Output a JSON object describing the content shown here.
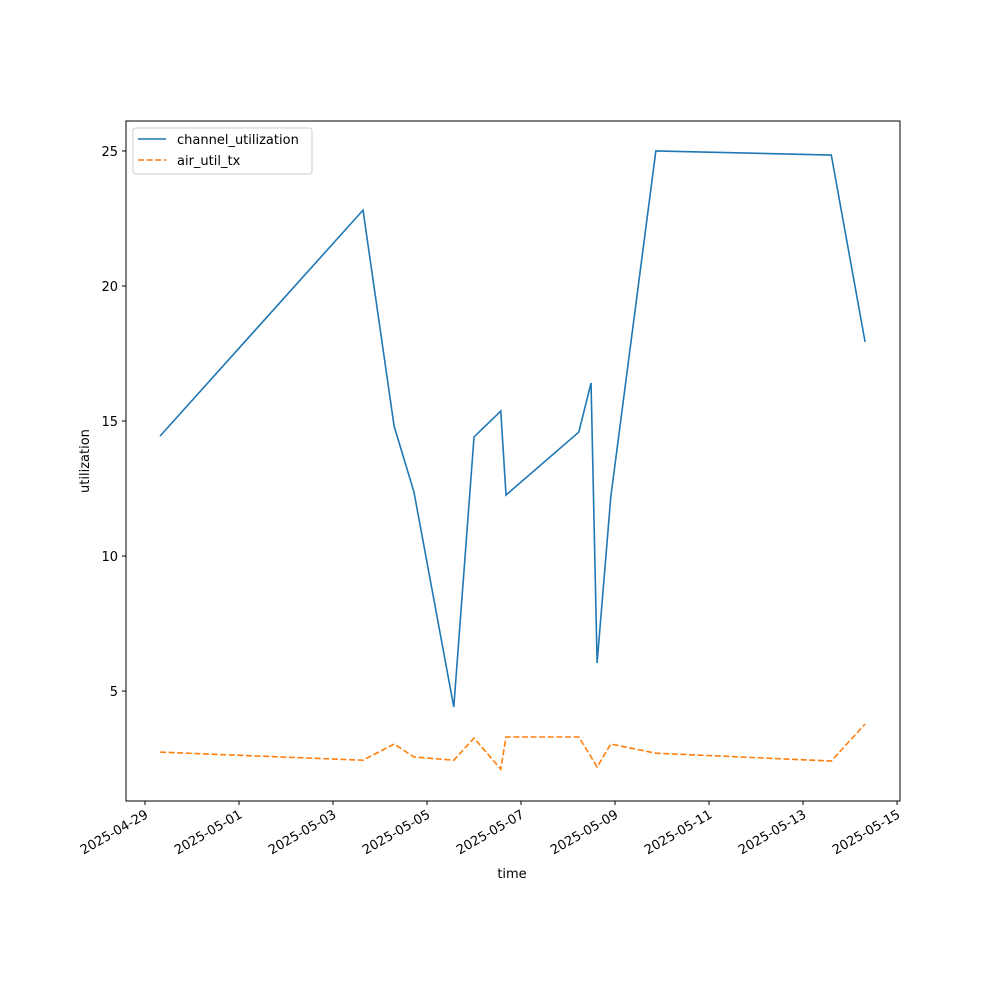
{
  "chart_data": {
    "type": "line",
    "xlabel": "time",
    "ylabel": "utilization",
    "x": [
      "2025-04-29T07:40",
      "2025-05-03T15:19",
      "2025-05-04T07:12",
      "2025-05-04T17:20",
      "2025-05-05T13:40",
      "2025-05-06T00:00",
      "2025-05-06T13:40",
      "2025-05-06T16:20",
      "2025-05-08T05:30",
      "2025-05-08T11:45",
      "2025-05-08T14:50",
      "2025-05-08T21:50",
      "2025-05-09T20:50",
      "2025-05-13T14:25",
      "2025-05-14T07:40"
    ],
    "series": [
      {
        "name": "channel_utilization",
        "color": "#1f77b4",
        "linestyle": "solid",
        "values": [
          14.44,
          22.81,
          14.81,
          12.37,
          4.41,
          14.41,
          15.37,
          12.26,
          14.59,
          16.41,
          6.04,
          12.19,
          25.0,
          24.85,
          17.93
        ]
      },
      {
        "name": "air_util_tx",
        "color": "#ff7f0e",
        "linestyle": "dashed",
        "values": [
          2.74,
          2.44,
          3.04,
          2.56,
          2.44,
          3.26,
          2.11,
          3.3,
          3.3,
          2.56,
          2.19,
          3.04,
          2.7,
          2.41,
          3.78
        ]
      }
    ],
    "xlim": [
      "2025-04-28T14:18",
      "2025-05-15T01:30"
    ],
    "xticks": [
      "2025-04-29",
      "2025-05-01",
      "2025-05-03",
      "2025-05-05",
      "2025-05-07",
      "2025-05-09",
      "2025-05-11",
      "2025-05-13",
      "2025-05-15"
    ],
    "ylim": [
      0.93,
      26.11
    ],
    "yticks": [
      5,
      10,
      15,
      20,
      25
    ],
    "grid": false,
    "legend": "upper left"
  }
}
